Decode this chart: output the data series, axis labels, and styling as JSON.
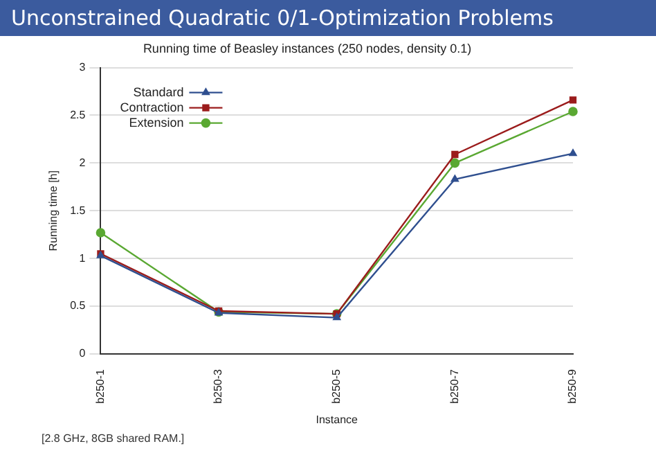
{
  "chart_data": {
    "type": "line",
    "title": "Unconstrained Quadratic 0/1-Optimization Problems",
    "subtitle": "Running time of Beasley instances (250 nodes, density 0.1)",
    "xlabel": "Instance",
    "ylabel": "Running time [h]",
    "categories": [
      "b250-1",
      "b250-3",
      "b250-5",
      "b250-7",
      "b250-9"
    ],
    "series": [
      {
        "name": "Standard",
        "color": "#2f4f8f",
        "marker": "triangle",
        "values": [
          1.03,
          0.43,
          0.38,
          1.83,
          2.1
        ]
      },
      {
        "name": "Contraction",
        "color": "#9b1c1c",
        "marker": "square",
        "values": [
          1.05,
          0.45,
          0.42,
          2.09,
          2.66
        ]
      },
      {
        "name": "Extension",
        "color": "#5aa832",
        "marker": "circle",
        "values": [
          1.27,
          0.44,
          0.42,
          2.0,
          2.54
        ]
      }
    ],
    "ylim": [
      0,
      3
    ],
    "yticks": [
      0,
      0.5,
      1,
      1.5,
      2,
      2.5,
      3
    ],
    "grid": "y",
    "legend": "top left",
    "annotations": [
      "[2.8 GHz, 8GB shared RAM.]"
    ]
  }
}
